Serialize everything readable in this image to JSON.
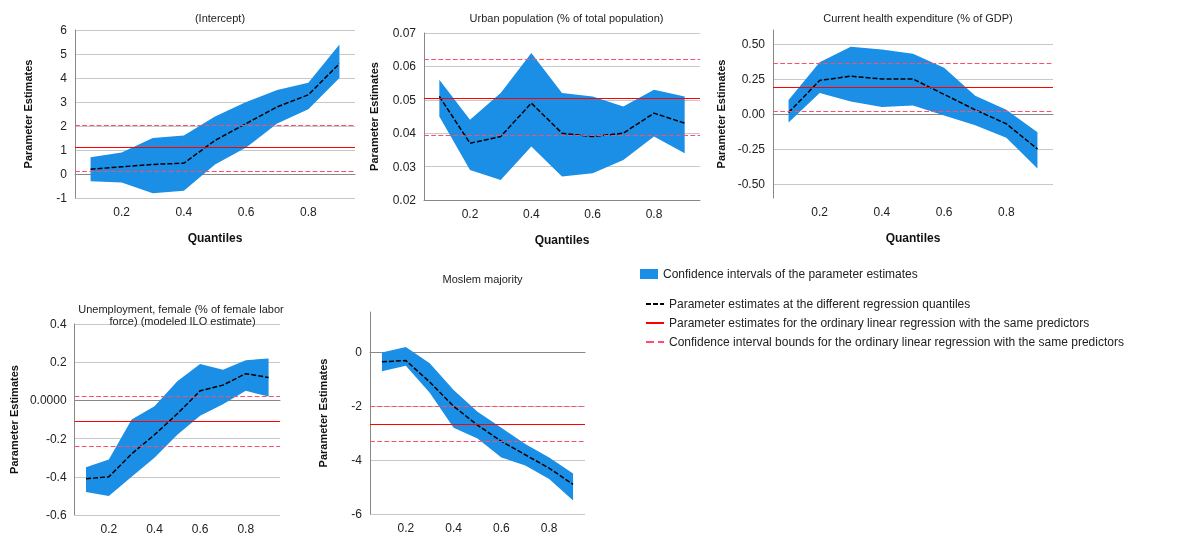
{
  "chart_data": [
    {
      "type": "line",
      "title": "(Intercept)",
      "xlabel": "Quantiles",
      "ylabel": "Parameter Estimates",
      "x": [
        0.1,
        0.2,
        0.3,
        0.4,
        0.5,
        0.6,
        0.7,
        0.8,
        0.9
      ],
      "xlim": [
        0.05,
        0.95
      ],
      "xticks": [
        0.2,
        0.4,
        0.6,
        0.8
      ],
      "ylim": [
        -1,
        6
      ],
      "yticks": [
        -1,
        0,
        1,
        2,
        3,
        4,
        5,
        6
      ],
      "grid": "y",
      "series": [
        {
          "color": "#000000",
          "line_style": "dashed",
          "values": [
            0.2,
            0.3,
            0.4,
            0.45,
            1.4,
            2.1,
            2.8,
            3.3,
            4.6
          ],
          "lower": [
            -0.3,
            -0.35,
            -0.8,
            -0.7,
            0.4,
            1.1,
            2.1,
            2.7,
            4.0
          ],
          "upper": [
            0.7,
            0.9,
            1.5,
            1.6,
            2.4,
            3.0,
            3.5,
            3.8,
            5.4
          ]
        }
      ],
      "ref_lines": [
        {
          "axis": "y",
          "value": 1.1,
          "color": "#ff0000",
          "line_style": "solid"
        },
        {
          "axis": "y",
          "value": 0.1,
          "color": "#ff4d6d",
          "line_style": "dashed"
        },
        {
          "axis": "y",
          "value": 2.05,
          "color": "#ff4d6d",
          "line_style": "dashed"
        }
      ]
    },
    {
      "type": "line",
      "title": "Urban population (% of total population)",
      "xlabel": "Quantiles",
      "ylabel": "Parameter Estimates",
      "x": [
        0.1,
        0.2,
        0.3,
        0.4,
        0.5,
        0.6,
        0.7,
        0.8,
        0.9
      ],
      "xlim": [
        0.05,
        0.95
      ],
      "xticks": [
        0.2,
        0.4,
        0.6,
        0.8
      ],
      "ylim": [
        0.02,
        0.07
      ],
      "yticks": [
        0.02,
        0.03,
        0.04,
        0.05,
        0.06,
        0.07
      ],
      "grid": "y",
      "series": [
        {
          "color": "#000000",
          "line_style": "dashed",
          "values": [
            0.051,
            0.037,
            0.039,
            0.049,
            0.04,
            0.039,
            0.04,
            0.046,
            0.043
          ],
          "lower": [
            0.045,
            0.029,
            0.026,
            0.036,
            0.027,
            0.028,
            0.032,
            0.039,
            0.034
          ],
          "upper": [
            0.056,
            0.044,
            0.052,
            0.064,
            0.052,
            0.051,
            0.048,
            0.053,
            0.051
          ]
        }
      ],
      "ref_lines": [
        {
          "axis": "y",
          "value": 0.0505,
          "color": "#ff0000",
          "line_style": "solid"
        },
        {
          "axis": "y",
          "value": 0.0395,
          "color": "#ff4d6d",
          "line_style": "dashed"
        },
        {
          "axis": "y",
          "value": 0.062,
          "color": "#ff4d6d",
          "line_style": "dashed"
        }
      ]
    },
    {
      "type": "line",
      "title": "Current health expenditure (% of GDP)",
      "xlabel": "Quantiles",
      "ylabel": "Parameter Estimates",
      "x": [
        0.1,
        0.2,
        0.3,
        0.4,
        0.5,
        0.6,
        0.7,
        0.8,
        0.9
      ],
      "xlim": [
        0.05,
        0.95
      ],
      "xticks": [
        0.2,
        0.4,
        0.6,
        0.8
      ],
      "ylim": [
        -0.6,
        0.6
      ],
      "yticks": [
        {
          "value": -0.5,
          "label": "-0.50"
        },
        {
          "value": -0.25,
          "label": "-0.25"
        },
        {
          "value": 0,
          "label": "0.00"
        },
        {
          "value": 0.25,
          "label": "0.25"
        },
        {
          "value": 0.5,
          "label": "0.50"
        }
      ],
      "grid": "y",
      "series": [
        {
          "color": "#000000",
          "line_style": "dashed",
          "values": [
            0.01,
            0.24,
            0.27,
            0.25,
            0.25,
            0.14,
            0.03,
            -0.07,
            -0.25
          ],
          "lower": [
            -0.06,
            0.15,
            0.09,
            0.05,
            0.06,
            -0.01,
            -0.08,
            -0.17,
            -0.39
          ],
          "upper": [
            0.1,
            0.37,
            0.48,
            0.46,
            0.43,
            0.33,
            0.13,
            0.03,
            -0.13
          ]
        }
      ],
      "ref_lines": [
        {
          "axis": "y",
          "value": 0.19,
          "color": "#ff0000",
          "line_style": "solid"
        },
        {
          "axis": "y",
          "value": 0.02,
          "color": "#ff4d6d",
          "line_style": "dashed"
        },
        {
          "axis": "y",
          "value": 0.36,
          "color": "#ff4d6d",
          "line_style": "dashed"
        }
      ]
    },
    {
      "type": "line",
      "title": "Unemployment, female (% of female labor force) (modeled ILO estimate)",
      "ylabel": "Parameter Estimates",
      "x": [
        0.1,
        0.2,
        0.3,
        0.4,
        0.5,
        0.6,
        0.7,
        0.8,
        0.9
      ],
      "xlim": [
        0.05,
        0.95
      ],
      "xticks": [
        0.2,
        0.4,
        0.6,
        0.8
      ],
      "ylim": [
        -0.6,
        0.4
      ],
      "yticks": [
        -0.6,
        -0.4,
        -0.2,
        {
          "value": 0,
          "label": "0.0000"
        },
        0.2,
        0.4
      ],
      "grid": "y",
      "series": [
        {
          "color": "#000000",
          "line_style": "dashed",
          "values": [
            -0.41,
            -0.4,
            -0.28,
            -0.18,
            -0.07,
            0.05,
            0.08,
            0.14,
            0.12
          ],
          "lower": [
            -0.48,
            -0.5,
            -0.4,
            -0.3,
            -0.18,
            -0.08,
            -0.02,
            0.05,
            0.02
          ],
          "upper": [
            -0.35,
            -0.31,
            -0.1,
            -0.03,
            0.1,
            0.19,
            0.16,
            0.21,
            0.22
          ]
        }
      ],
      "ref_lines": [
        {
          "axis": "y",
          "value": -0.11,
          "color": "#ff0000",
          "line_style": "solid"
        },
        {
          "axis": "y",
          "value": -0.24,
          "color": "#ff4d6d",
          "line_style": "dashed"
        },
        {
          "axis": "y",
          "value": 0.02,
          "color": "#ff4d6d",
          "line_style": "dashed"
        }
      ]
    },
    {
      "type": "line",
      "title": "Moslem majority",
      "ylabel": "Parameter Estimates",
      "x": [
        0.1,
        0.2,
        0.3,
        0.4,
        0.5,
        0.6,
        0.7,
        0.8,
        0.9
      ],
      "xlim": [
        0.05,
        0.95
      ],
      "xticks": [
        0.2,
        0.4,
        0.6,
        0.8
      ],
      "ylim": [
        -6,
        1.5
      ],
      "yticks": [
        -6,
        -4,
        -2,
        0
      ],
      "grid": "y",
      "legend": "right",
      "series": [
        {
          "name": "Parameter estimates at the different regression quantiles",
          "color": "#000000",
          "line_style": "dashed",
          "values": [
            -0.35,
            -0.3,
            -1.1,
            -2.0,
            -2.7,
            -3.3,
            -3.8,
            -4.3,
            -4.9
          ],
          "lower": [
            -0.7,
            -0.5,
            -1.5,
            -2.8,
            -3.2,
            -3.9,
            -4.2,
            -4.7,
            -5.5
          ],
          "upper": [
            0,
            0.2,
            -0.4,
            -1.4,
            -2.2,
            -2.8,
            -3.4,
            -3.9,
            -4.5
          ]
        }
      ],
      "annotations": [
        "Confidence intervals of the parameter estimates"
      ],
      "ref_lines": [
        {
          "axis": "y",
          "value": -2.65,
          "label": "Parameter estimates for the ordinary linear regression with the same predictors",
          "color": "#ff0000",
          "line_style": "solid"
        },
        {
          "axis": "y",
          "value": -2.0,
          "label": "Confidence interval bounds for the ordinary linear regression with the same predictors",
          "color": "#ff4d6d",
          "line_style": "dashed"
        },
        {
          "axis": "y",
          "value": -3.3,
          "color": "#ff4d6d",
          "line_style": "dashed"
        }
      ]
    }
  ]
}
